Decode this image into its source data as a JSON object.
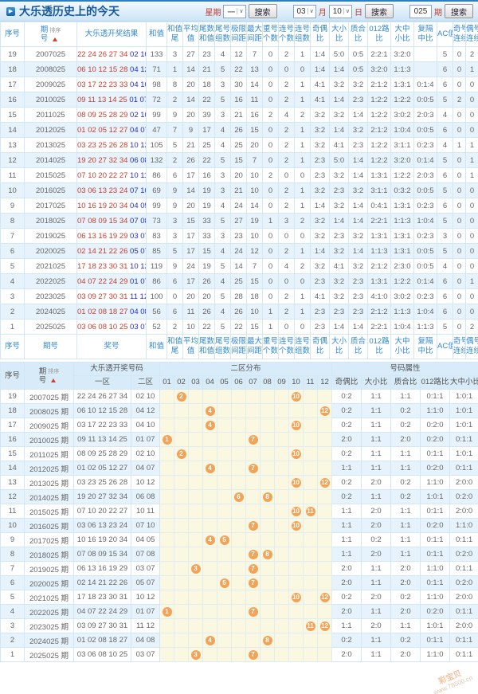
{
  "header": {
    "title": "大乐透历史上的今天",
    "week_label": "星期",
    "week_value": "一",
    "month_value": "03",
    "month_label": "月",
    "day_value": "10",
    "day_label": "日",
    "issue_value": "025",
    "issue_label": "期",
    "search_label": "搜索"
  },
  "colors": {
    "accent_blue": "#2e7fc1",
    "header_text_blue": "#3389cf",
    "front_number_red": "#c43e2e",
    "back_number_blue": "#2230cf",
    "ball_orange": "#f2a35a",
    "zone_yellow": "#fbf8e1",
    "stripe_blue": "#e6f3fc",
    "sort_arrow_red": "#e0392b"
  },
  "table1": {
    "sort_label": "排序",
    "columns": [
      {
        "key": "seq",
        "l1": "序号",
        "l2": ""
      },
      {
        "key": "issue",
        "l1": "期",
        "l2": "号"
      },
      {
        "key": "result",
        "l1": "大乐透开奖结果",
        "l2": ""
      },
      {
        "key": "sum",
        "l1": "和值",
        "l2": ""
      },
      {
        "key": "sum-tail",
        "l1": "和值",
        "l2": "尾"
      },
      {
        "key": "avg",
        "l1": "平均",
        "l2": "值"
      },
      {
        "key": "tail-sum",
        "l1": "尾数",
        "l2": "和值"
      },
      {
        "key": "tail-groups",
        "l1": "尾号",
        "l2": "组数"
      },
      {
        "key": "limit-span",
        "l1": "极限",
        "l2": "间距"
      },
      {
        "key": "max-span",
        "l1": "最大",
        "l2": "间距"
      },
      {
        "key": "repeat-count",
        "l1": "重号",
        "l2": "个数"
      },
      {
        "key": "consec-count",
        "l1": "连号",
        "l2": "个数"
      },
      {
        "key": "consec-groups",
        "l1": "连号",
        "l2": "组数"
      },
      {
        "key": "odd-even",
        "l1": "奇偶",
        "l2": "比"
      },
      {
        "key": "big-small",
        "l1": "大小",
        "l2": "比"
      },
      {
        "key": "prime-comp",
        "l1": "质合",
        "l2": "比"
      },
      {
        "key": "road012",
        "l1": "012路",
        "l2": "比"
      },
      {
        "key": "big-mid-small",
        "l1": "大中",
        "l2": "小比"
      },
      {
        "key": "rep-skip-mid",
        "l1": "复隔",
        "l2": "中比"
      },
      {
        "key": "ac",
        "l1": "AC值",
        "l2": ""
      },
      {
        "key": "odd-consec",
        "l1": "奇号",
        "l2": "连续"
      },
      {
        "key": "even-consec",
        "l1": "偶号",
        "l2": "连续"
      }
    ],
    "footer_columns": [
      {
        "key": "seq",
        "l1": "序号",
        "l2": ""
      },
      {
        "key": "issue",
        "l1": "期号",
        "l2": ""
      },
      {
        "key": "result",
        "l1": "奖号",
        "l2": ""
      },
      {
        "key": "sum",
        "l1": "和值",
        "l2": ""
      },
      {
        "key": "sum-tail",
        "l1": "和值",
        "l2": "尾"
      },
      {
        "key": "avg",
        "l1": "平均",
        "l2": "值"
      },
      {
        "key": "tail-sum",
        "l1": "尾数",
        "l2": "和值"
      },
      {
        "key": "tail-groups",
        "l1": "尾号",
        "l2": "组数"
      },
      {
        "key": "limit-span",
        "l1": "极限",
        "l2": "间距"
      },
      {
        "key": "max-span",
        "l1": "最大",
        "l2": "间距"
      },
      {
        "key": "repeat-count",
        "l1": "重号",
        "l2": "个数"
      },
      {
        "key": "consec-count",
        "l1": "连号",
        "l2": "个数"
      },
      {
        "key": "consec-groups",
        "l1": "连号",
        "l2": "组数"
      },
      {
        "key": "odd-even",
        "l1": "奇偶",
        "l2": "比"
      },
      {
        "key": "big-small",
        "l1": "大小",
        "l2": "比"
      },
      {
        "key": "prime-comp",
        "l1": "质合",
        "l2": "比"
      },
      {
        "key": "road012",
        "l1": "012路",
        "l2": "比"
      },
      {
        "key": "big-mid-small",
        "l1": "大中",
        "l2": "小比"
      },
      {
        "key": "rep-skip-mid",
        "l1": "复隔",
        "l2": "中比"
      },
      {
        "key": "ac",
        "l1": "AC值",
        "l2": ""
      },
      {
        "key": "odd-consec",
        "l1": "奇号",
        "l2": "连续"
      },
      {
        "key": "even-consec",
        "l1": "偶号",
        "l2": "连续"
      }
    ],
    "rows": [
      {
        "seq": "19",
        "issue": "2007025",
        "front": "22 24 26 27 34",
        "back": "02 10",
        "vals": [
          "133",
          "3",
          "27",
          "23",
          "4",
          "12",
          "7",
          "0",
          "2",
          "1",
          "1:4",
          "5:0",
          "0:5",
          "2:2:1",
          "3:2:0",
          "",
          "5",
          "0",
          "2"
        ]
      },
      {
        "seq": "18",
        "issue": "2008025",
        "front": "06 10 12 15 28",
        "back": "04 12",
        "vals": [
          "71",
          "1",
          "14",
          "21",
          "5",
          "22",
          "13",
          "0",
          "0",
          "0",
          "1:4",
          "1:4",
          "0:5",
          "3:2:0",
          "1:1:3",
          "",
          "6",
          "0",
          "1"
        ]
      },
      {
        "seq": "17",
        "issue": "2009025",
        "front": "03 17 22 23 33",
        "back": "04 10",
        "vals": [
          "98",
          "8",
          "20",
          "18",
          "3",
          "30",
          "14",
          "0",
          "2",
          "1",
          "4:1",
          "3:2",
          "3:2",
          "2:1:2",
          "1:3:1",
          "0:1:4",
          "6",
          "0",
          "0"
        ]
      },
      {
        "seq": "16",
        "issue": "2010025",
        "front": "09 11 13 14 25",
        "back": "01 07",
        "vals": [
          "72",
          "2",
          "14",
          "22",
          "5",
          "16",
          "11",
          "0",
          "2",
          "1",
          "4:1",
          "1:4",
          "2:3",
          "1:2:2",
          "1:2:2",
          "0:0:5",
          "5",
          "2",
          "0"
        ]
      },
      {
        "seq": "15",
        "issue": "2011025",
        "front": "08 09 25 28 29",
        "back": "02 10",
        "vals": [
          "99",
          "9",
          "20",
          "39",
          "3",
          "21",
          "16",
          "2",
          "4",
          "2",
          "3:2",
          "3:2",
          "1:4",
          "1:2:2",
          "3:0:2",
          "2:0:3",
          "4",
          "0",
          "0"
        ]
      },
      {
        "seq": "14",
        "issue": "2012025",
        "front": "01 02 05 12 27",
        "back": "04 07",
        "vals": [
          "47",
          "7",
          "9",
          "17",
          "4",
          "26",
          "15",
          "0",
          "2",
          "1",
          "3:2",
          "1:4",
          "3:2",
          "2:1:2",
          "1:0:4",
          "0:0:5",
          "6",
          "0",
          "0"
        ]
      },
      {
        "seq": "13",
        "issue": "2013025",
        "front": "03 23 25 26 28",
        "back": "10 12",
        "vals": [
          "105",
          "5",
          "21",
          "25",
          "4",
          "25",
          "20",
          "0",
          "2",
          "1",
          "3:2",
          "4:1",
          "2:3",
          "1:2:2",
          "3:1:1",
          "0:2:3",
          "4",
          "1",
          "1"
        ]
      },
      {
        "seq": "12",
        "issue": "2014025",
        "front": "19 20 27 32 34",
        "back": "06 08",
        "vals": [
          "132",
          "2",
          "26",
          "22",
          "5",
          "15",
          "7",
          "0",
          "2",
          "1",
          "2:3",
          "5:0",
          "1:4",
          "1:2:2",
          "3:2:0",
          "0:1:4",
          "5",
          "0",
          "1"
        ]
      },
      {
        "seq": "11",
        "issue": "2015025",
        "front": "07 10 20 22 27",
        "back": "10 11",
        "vals": [
          "86",
          "6",
          "17",
          "16",
          "3",
          "20",
          "10",
          "2",
          "0",
          "0",
          "2:3",
          "3:2",
          "1:4",
          "1:3:1",
          "1:2:2",
          "2:0:3",
          "6",
          "0",
          "1"
        ]
      },
      {
        "seq": "10",
        "issue": "2016025",
        "front": "03 06 13 23 24",
        "back": "07 10",
        "vals": [
          "69",
          "9",
          "14",
          "19",
          "3",
          "21",
          "10",
          "0",
          "2",
          "1",
          "3:2",
          "2:3",
          "3:2",
          "3:1:1",
          "0:3:2",
          "0:0:5",
          "5",
          "0",
          "0"
        ]
      },
      {
        "seq": "9",
        "issue": "2017025",
        "front": "10 16 19 20 34",
        "back": "04 05",
        "vals": [
          "99",
          "9",
          "20",
          "19",
          "4",
          "24",
          "14",
          "0",
          "2",
          "1",
          "1:4",
          "3:2",
          "1:4",
          "0:4:1",
          "1:3:1",
          "0:2:3",
          "6",
          "0",
          "0"
        ]
      },
      {
        "seq": "8",
        "issue": "2018025",
        "front": "07 08 09 15 34",
        "back": "07 08",
        "vals": [
          "73",
          "3",
          "15",
          "33",
          "5",
          "27",
          "19",
          "1",
          "3",
          "2",
          "3:2",
          "1:4",
          "1:4",
          "2:2:1",
          "1:1:3",
          "1:0:4",
          "5",
          "0",
          "0"
        ]
      },
      {
        "seq": "7",
        "issue": "2019025",
        "front": "06 13 16 19 29",
        "back": "03 07",
        "vals": [
          "83",
          "3",
          "17",
          "33",
          "3",
          "23",
          "10",
          "0",
          "0",
          "0",
          "3:2",
          "2:3",
          "3:2",
          "1:3:1",
          "1:3:1",
          "0:2:3",
          "3",
          "0",
          "0"
        ]
      },
      {
        "seq": "6",
        "issue": "2020025",
        "front": "02 14 21 22 26",
        "back": "05 07",
        "vals": [
          "85",
          "5",
          "17",
          "15",
          "4",
          "24",
          "12",
          "0",
          "2",
          "1",
          "1:4",
          "3:2",
          "1:4",
          "1:1:3",
          "1:3:1",
          "0:0:5",
          "5",
          "0",
          "0"
        ]
      },
      {
        "seq": "5",
        "issue": "2021025",
        "front": "17 18 23 30 31",
        "back": "10 12",
        "vals": [
          "119",
          "9",
          "24",
          "19",
          "5",
          "14",
          "7",
          "0",
          "4",
          "2",
          "3:2",
          "4:1",
          "3:2",
          "2:1:2",
          "2:3:0",
          "0:0:5",
          "4",
          "0",
          "0"
        ]
      },
      {
        "seq": "4",
        "issue": "2022025",
        "front": "04 07 22 24 29",
        "back": "01 07",
        "vals": [
          "86",
          "6",
          "17",
          "26",
          "4",
          "25",
          "15",
          "0",
          "0",
          "0",
          "2:3",
          "3:2",
          "2:3",
          "1:3:1",
          "1:2:2",
          "0:1:4",
          "6",
          "0",
          "1"
        ]
      },
      {
        "seq": "3",
        "issue": "2023025",
        "front": "03 09 27 30 31",
        "back": "11 12",
        "vals": [
          "100",
          "0",
          "20",
          "20",
          "5",
          "28",
          "18",
          "0",
          "2",
          "1",
          "4:1",
          "3:2",
          "2:3",
          "4:1:0",
          "3:0:2",
          "0:2:3",
          "6",
          "0",
          "0"
        ]
      },
      {
        "seq": "2",
        "issue": "2024025",
        "front": "01 02 08 18 27",
        "back": "04 08",
        "vals": [
          "56",
          "6",
          "11",
          "26",
          "4",
          "26",
          "10",
          "1",
          "2",
          "1",
          "2:3",
          "2:3",
          "2:3",
          "2:1:2",
          "1:1:3",
          "1:0:4",
          "6",
          "0",
          "0"
        ]
      },
      {
        "seq": "1",
        "issue": "2025025",
        "front": "03 06 08 10 25",
        "back": "03 07",
        "vals": [
          "52",
          "2",
          "10",
          "22",
          "5",
          "22",
          "15",
          "1",
          "0",
          "0",
          "2:3",
          "1:4",
          "1:4",
          "2:2:1",
          "1:0:4",
          "1:1:3",
          "5",
          "0",
          "2"
        ]
      }
    ]
  },
  "table2": {
    "sort_label": "排序",
    "headers": {
      "seq": "序号",
      "issue_l1": "期",
      "issue_l2": "号",
      "result_group": "大乐透开奖号码",
      "zone1": "一区",
      "zone2": "二区",
      "dist_group": "二区分布",
      "dist_cols": [
        "01",
        "02",
        "03",
        "04",
        "05",
        "06",
        "07",
        "08",
        "09",
        "10",
        "11",
        "12"
      ],
      "attr_group": "号码属性",
      "attr_cols": [
        "奇偶比",
        "大小比",
        "质合比",
        "012路比",
        "大中小比"
      ]
    },
    "rows": [
      {
        "seq": "19",
        "issue": "2007025 期",
        "zone1": "22 24 26 27 34",
        "zone2": "02 10",
        "balls": [
          2,
          10
        ],
        "attrs": [
          "0:2",
          "1:1",
          "1:1",
          "0:1:1",
          "1:0:1"
        ]
      },
      {
        "seq": "18",
        "issue": "2008025 期",
        "zone1": "06 10 12 15 28",
        "zone2": "04 12",
        "balls": [
          4,
          12
        ],
        "attrs": [
          "0:2",
          "1:1",
          "0:2",
          "1:1:0",
          "1:0:1"
        ]
      },
      {
        "seq": "17",
        "issue": "2009025 期",
        "zone1": "03 17 22 23 33",
        "zone2": "04 10",
        "balls": [
          4,
          10
        ],
        "attrs": [
          "0:2",
          "1:1",
          "0:2",
          "0:2:0",
          "1:0:1"
        ]
      },
      {
        "seq": "16",
        "issue": "2010025 期",
        "zone1": "09 11 13 14 25",
        "zone2": "01 07",
        "balls": [
          1,
          7
        ],
        "attrs": [
          "2:0",
          "1:1",
          "2:0",
          "0:2:0",
          "0:1:1"
        ]
      },
      {
        "seq": "15",
        "issue": "2011025 期",
        "zone1": "08 09 25 28 29",
        "zone2": "02 10",
        "balls": [
          2,
          10
        ],
        "attrs": [
          "0:2",
          "1:1",
          "1:1",
          "0:1:1",
          "1:0:1"
        ]
      },
      {
        "seq": "14",
        "issue": "2012025 期",
        "zone1": "01 02 05 12 27",
        "zone2": "04 07",
        "balls": [
          4,
          7
        ],
        "attrs": [
          "1:1",
          "1:1",
          "1:1",
          "0:2:0",
          "0:1:1"
        ]
      },
      {
        "seq": "13",
        "issue": "2013025 期",
        "zone1": "03 23 25 26 28",
        "zone2": "10 12",
        "balls": [
          10,
          12
        ],
        "attrs": [
          "0:2",
          "2:0",
          "0:2",
          "1:1:0",
          "2:0:0"
        ]
      },
      {
        "seq": "12",
        "issue": "2014025 期",
        "zone1": "19 20 27 32 34",
        "zone2": "06 08",
        "balls": [
          6,
          8
        ],
        "attrs": [
          "0:2",
          "1:1",
          "0:2",
          "1:0:1",
          "0:2:0"
        ]
      },
      {
        "seq": "11",
        "issue": "2015025 期",
        "zone1": "07 10 20 22 27",
        "zone2": "10 11",
        "balls": [
          10,
          11
        ],
        "attrs": [
          "1:1",
          "2:0",
          "1:1",
          "0:1:1",
          "2:0:0"
        ]
      },
      {
        "seq": "10",
        "issue": "2016025 期",
        "zone1": "03 06 13 23 24",
        "zone2": "07 10",
        "balls": [
          7,
          10
        ],
        "attrs": [
          "1:1",
          "2:0",
          "1:1",
          "0:2:0",
          "1:1:0"
        ]
      },
      {
        "seq": "9",
        "issue": "2017025 期",
        "zone1": "10 16 19 20 34",
        "zone2": "04 05",
        "balls": [
          4,
          5
        ],
        "attrs": [
          "1:1",
          "0:2",
          "1:1",
          "0:1:1",
          "0:1:1"
        ]
      },
      {
        "seq": "8",
        "issue": "2018025 期",
        "zone1": "07 08 09 15 34",
        "zone2": "07 08",
        "balls": [
          7,
          8
        ],
        "attrs": [
          "1:1",
          "2:0",
          "1:1",
          "0:1:1",
          "0:2:0"
        ]
      },
      {
        "seq": "7",
        "issue": "2019025 期",
        "zone1": "06 13 16 19 29",
        "zone2": "03 07",
        "balls": [
          3,
          7
        ],
        "attrs": [
          "2:0",
          "1:1",
          "2:0",
          "1:1:0",
          "0:1:1"
        ]
      },
      {
        "seq": "6",
        "issue": "2020025 期",
        "zone1": "02 14 21 22 26",
        "zone2": "05 07",
        "balls": [
          5,
          7
        ],
        "attrs": [
          "2:0",
          "1:1",
          "2:0",
          "0:1:1",
          "0:2:0"
        ]
      },
      {
        "seq": "5",
        "issue": "2021025 期",
        "zone1": "17 18 23 30 31",
        "zone2": "10 12",
        "balls": [
          10,
          12
        ],
        "attrs": [
          "0:2",
          "2:0",
          "0:2",
          "1:1:0",
          "2:0:0"
        ]
      },
      {
        "seq": "4",
        "issue": "2022025 期",
        "zone1": "04 07 22 24 29",
        "zone2": "01 07",
        "balls": [
          1,
          7
        ],
        "attrs": [
          "2:0",
          "1:1",
          "2:0",
          "0:2:0",
          "0:1:1"
        ]
      },
      {
        "seq": "3",
        "issue": "2023025 期",
        "zone1": "03 09 27 30 31",
        "zone2": "11 12",
        "balls": [
          11,
          12
        ],
        "attrs": [
          "1:1",
          "2:0",
          "1:1",
          "1:0:1",
          "2:0:0"
        ]
      },
      {
        "seq": "2",
        "issue": "2024025 期",
        "zone1": "01 02 08 18 27",
        "zone2": "04 08",
        "balls": [
          4,
          8
        ],
        "attrs": [
          "0:2",
          "1:1",
          "0:2",
          "0:1:1",
          "0:1:1"
        ]
      },
      {
        "seq": "1",
        "issue": "2025025 期",
        "zone1": "03 06 08 10 25",
        "zone2": "03 07",
        "balls": [
          3,
          7
        ],
        "attrs": [
          "2:0",
          "1:1",
          "2:0",
          "1:1:0",
          "0:1:1"
        ]
      }
    ]
  },
  "watermark": {
    "line1": "彩宝贝",
    "line2": "www.78500.cn"
  }
}
